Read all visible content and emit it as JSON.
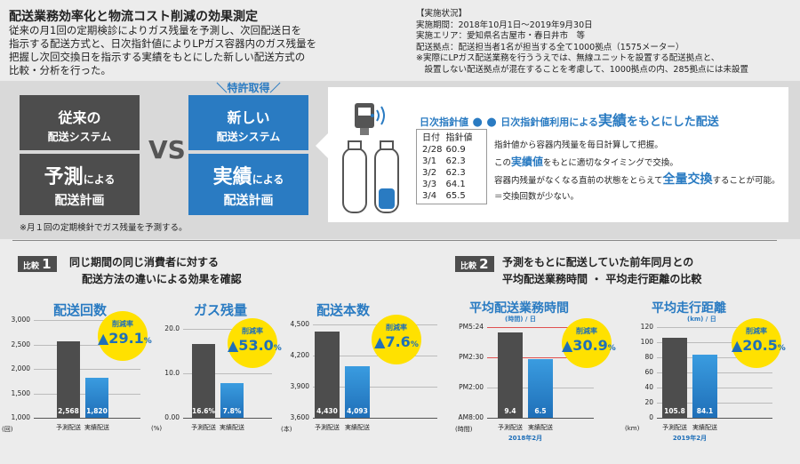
{
  "header": {
    "title": "配送業務効率化と物流コスト削減の効果測定",
    "intro": [
      "従来の月1回の定期検診によりガス残量を予測し、次回配送日を",
      "指示する配送方式と、日次指針値によりLPガス容器内のガス残量を",
      "把握し次回交換日を指示する実績をもとにした新しい配送方式の",
      "比較・分析を行った。"
    ]
  },
  "status": {
    "heading": "【実施状況】",
    "lines": [
      "実施期間：2018年10月1日〜2019年9月30日",
      "実施エリア：愛知県名古屋市・春日井市　等",
      "配送拠点：配送担当者1名が担当する全て1000拠点（1575メーター）",
      "※実際にLPガス配送業務を行ううえでは、無線ユニットを設置する配送拠点と、",
      "　設置しない配送拠点が混在することを考慮して、1000拠点の内、285拠点には未設置"
    ]
  },
  "compare": {
    "legacy": {
      "top_big": "従来の",
      "top_small": "配送システム",
      "bot_big": "予測",
      "bot_mid": "による",
      "bot_small": "配送計画"
    },
    "new": {
      "badge": "＼特許取得／",
      "top_big": "新しい",
      "top_small": "配送システム",
      "bot_big": "実績",
      "bot_mid": "による",
      "bot_small": "配送計画"
    },
    "vs": "VS",
    "note": "※月１回の定期検針でガス残量を予測する。"
  },
  "panel": {
    "label": "日次指針値",
    "dots": "● ●",
    "title_mid": "日次指針値利用による",
    "title_big": "実績",
    "title_end": "をもとにした配送",
    "table_header": [
      "日付",
      "指針値"
    ],
    "table_rows": [
      [
        "2/28",
        "60.9"
      ],
      [
        "3/1",
        "62.3"
      ],
      [
        "3/2",
        "62.3"
      ],
      [
        "3/3",
        "64.1"
      ],
      [
        "3/4",
        "65.5"
      ]
    ],
    "desc1": "指針値から容器内残量を毎日計算して把握。",
    "desc2_pre": "この",
    "desc2_em": "実績値",
    "desc2_post": "をもとに適切なタイミングで交換。",
    "desc3_pre": "容器内残量がなくなる直前の状態をとらえて",
    "desc3_em": "全量交換",
    "desc3_post": "することが可能。",
    "desc4": "＝交換回数が少ない。"
  },
  "section1": {
    "tag_small": "比較",
    "tag_num": "1",
    "line1": "同じ期間の同じ消費者に対する",
    "line2": "配送方法の違いによる効果を確認"
  },
  "section2": {
    "tag_small": "比較",
    "tag_num": "2",
    "line1": "予測をもとに配送していた前年同月との",
    "line2": "平均配送業務時間 ・ 平均走行距離の比較"
  },
  "charts": [
    {
      "title": "配送回数",
      "yticks": [
        "3,000",
        "2,500",
        "2,000",
        "1,500",
        "1,000"
      ],
      "unit": "(回)",
      "values_label": [
        "2,568",
        "1,820"
      ],
      "xlabels": [
        "予測配送",
        "実績配送"
      ],
      "reduction_label": "削減率",
      "reduction": "▲29.1",
      "pct": "%"
    },
    {
      "title": "ガス残量",
      "yticks": [
        "20.0",
        "10.0",
        "0.00"
      ],
      "unit": "(%)",
      "values_label": [
        "16.6%",
        "7.8%"
      ],
      "xlabels": [
        "予測配送",
        "実績配送"
      ],
      "reduction_label": "削減率",
      "reduction": "▲53.0",
      "pct": "%"
    },
    {
      "title": "配送本数",
      "yticks": [
        "4,500",
        "4,200",
        "3,900",
        "3,600"
      ],
      "unit": "(本)",
      "values_label": [
        "4,430",
        "4,093"
      ],
      "xlabels": [
        "予測配送",
        "実績配送"
      ],
      "reduction_label": "削減率",
      "reduction": "▲7.6",
      "pct": "%"
    },
    {
      "title": "平均配送業務時間",
      "subtitle": "(時間) / 日",
      "yticks": [
        "PM5:24",
        "PM2:30",
        "PM2:00",
        "AM8:00"
      ],
      "unit": "(時間)",
      "values_label": [
        "9.4",
        "6.5"
      ],
      "xlabels": [
        "予測配送",
        "実績配送"
      ],
      "caption": "2018年2月",
      "reduction_label": "削減率",
      "reduction": "▲30.9",
      "pct": "%"
    },
    {
      "title": "平均走行距離",
      "subtitle": "(km) / 日",
      "yticks": [
        "120",
        "100",
        "80",
        "60",
        "40",
        "20",
        "0"
      ],
      "unit": "(km)",
      "values_label": [
        "105.8",
        "84.1"
      ],
      "xlabels": [
        "予測配送",
        "実績配送"
      ],
      "caption": "2019年2月",
      "reduction_label": "削減率",
      "reduction": "▲20.5",
      "pct": "%"
    }
  ],
  "chart_data": [
    {
      "type": "bar",
      "title": "配送回数",
      "categories": [
        "予測配送",
        "実績配送"
      ],
      "values": [
        2568,
        1820
      ],
      "ylim": [
        1000,
        3000
      ],
      "ylabel": "(回)"
    },
    {
      "type": "bar",
      "title": "ガス残量",
      "categories": [
        "予測配送",
        "実績配送"
      ],
      "values": [
        16.6,
        7.8
      ],
      "ylim": [
        0,
        20
      ],
      "ylabel": "(%)"
    },
    {
      "type": "bar",
      "title": "配送本数",
      "categories": [
        "予測配送",
        "実績配送"
      ],
      "values": [
        4430,
        4093
      ],
      "ylim": [
        3600,
        4500
      ],
      "ylabel": "(本)"
    },
    {
      "type": "bar",
      "title": "平均配送業務時間",
      "categories": [
        "予測配送",
        "実績配送"
      ],
      "values": [
        9.4,
        6.5
      ],
      "ylim": [
        0,
        10
      ],
      "ylabel": "(時間)"
    },
    {
      "type": "bar",
      "title": "平均走行距離",
      "categories": [
        "予測配送",
        "実績配送"
      ],
      "values": [
        105.8,
        84.1
      ],
      "ylim": [
        0,
        120
      ],
      "ylabel": "(km)"
    }
  ]
}
